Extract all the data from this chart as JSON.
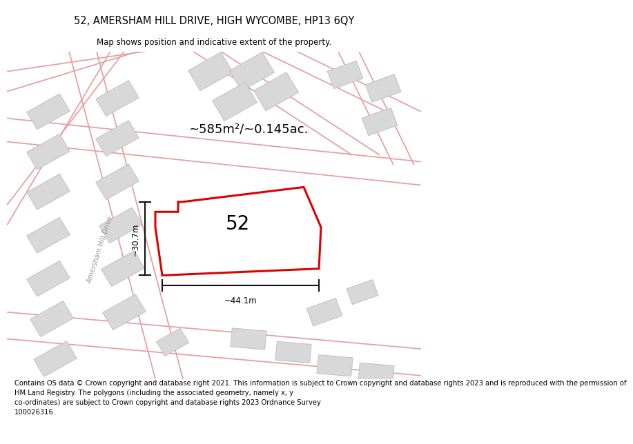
{
  "title": "52, AMERSHAM HILL DRIVE, HIGH WYCOMBE, HP13 6QY",
  "subtitle": "Map shows position and indicative extent of the property.",
  "footer": "Contains OS data © Crown copyright and database right 2021. This information is subject to Crown copyright and database rights 2023 and is reproduced with the permission of\nHM Land Registry. The polygons (including the associated geometry, namely x, y\nco-ordinates) are subject to Crown copyright and database rights 2023 Ordnance Survey\n100026316.",
  "area_label": "~585m²/~0.145ac.",
  "width_label": "~44.1m",
  "height_label": "~30.7m",
  "road_label": "Amersham Hill Drive",
  "property_number": "52",
  "bg_color": "#ffffff",
  "map_bg": "#fdf6f6",
  "building_fill": "#d8d8d8",
  "building_edge": "#bbbbbb",
  "road_color": "#e8a0a0",
  "property_edge": "#dd0000",
  "property_fill": "#ffffff",
  "dim_color": "#111111",
  "title_fontsize": 10.5,
  "subtitle_fontsize": 8.5,
  "footer_fontsize": 7.2,
  "area_fontsize": 13,
  "number_fontsize": 20,
  "dim_fontsize": 8.5,
  "road_name_fontsize": 7
}
